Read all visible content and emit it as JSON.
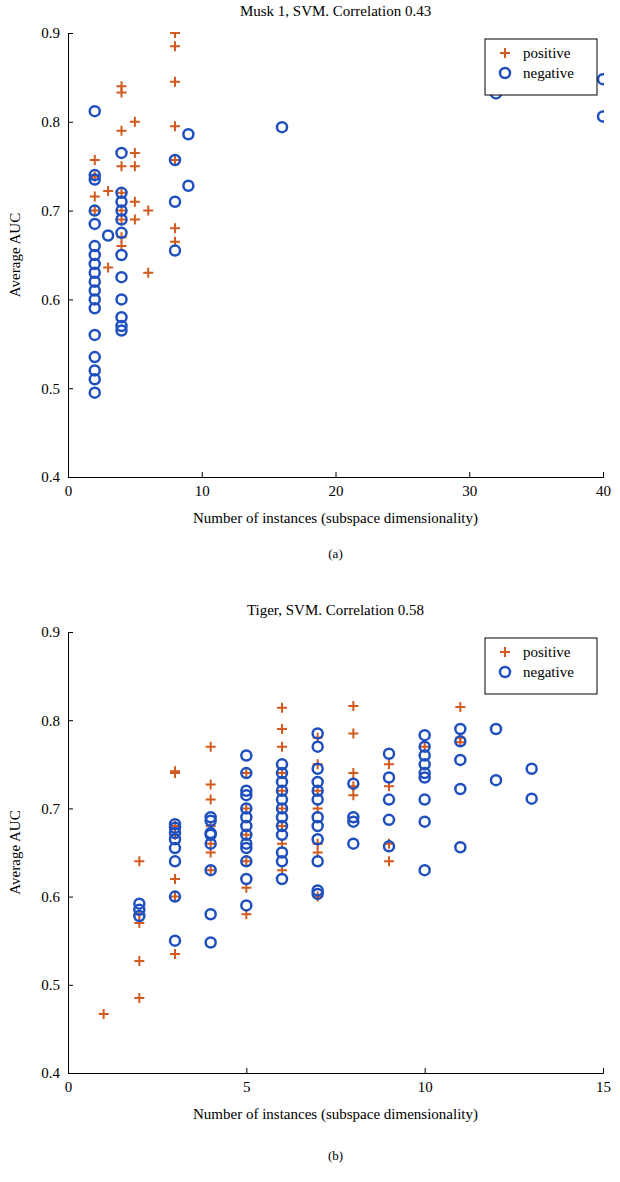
{
  "chart_data": [
    {
      "type": "scatter",
      "title": "Musk 1, SVM. Correlation 0.43",
      "x_label": "Number of instances (subspace dimensionality)",
      "y_label": "Average AUC",
      "caption": "(a)",
      "xlim": [
        0,
        40
      ],
      "xticks": [
        0,
        10,
        20,
        30,
        40
      ],
      "ylim": [
        0.4,
        0.9
      ],
      "yticks": [
        0.4,
        0.5,
        0.6,
        0.7,
        0.8,
        0.9
      ],
      "legend": "top-right",
      "series": [
        {
          "name": "positive",
          "color": "#d35a1e",
          "marker": "plus",
          "x": [
            2,
            2,
            2,
            2,
            3,
            3,
            4,
            4,
            4,
            4,
            4,
            4,
            4,
            4,
            4,
            5,
            5,
            5,
            5,
            5,
            6,
            6,
            8,
            8,
            8,
            8,
            8,
            8,
            8
          ],
          "values": [
            0.757,
            0.738,
            0.716,
            0.7,
            0.722,
            0.636,
            0.84,
            0.833,
            0.79,
            0.75,
            0.72,
            0.7,
            0.69,
            0.67,
            0.66,
            0.8,
            0.765,
            0.75,
            0.71,
            0.69,
            0.7,
            0.63,
            0.9,
            0.885,
            0.845,
            0.795,
            0.757,
            0.68,
            0.665
          ]
        },
        {
          "name": "negative",
          "color": "#1f4fbf",
          "marker": "circle",
          "x": [
            2,
            2,
            2,
            2,
            2,
            2,
            2,
            2,
            2,
            2,
            2,
            2,
            2,
            2,
            2,
            2,
            2,
            2,
            3,
            4,
            4,
            4,
            4,
            4,
            4,
            4,
            4,
            4,
            4,
            4,
            4,
            8,
            8,
            8,
            9,
            9,
            16,
            32,
            40,
            40
          ],
          "values": [
            0.812,
            0.74,
            0.735,
            0.7,
            0.685,
            0.66,
            0.65,
            0.64,
            0.63,
            0.62,
            0.61,
            0.6,
            0.59,
            0.56,
            0.535,
            0.52,
            0.51,
            0.495,
            0.672,
            0.765,
            0.72,
            0.71,
            0.7,
            0.69,
            0.675,
            0.65,
            0.625,
            0.6,
            0.58,
            0.57,
            0.565,
            0.757,
            0.71,
            0.655,
            0.786,
            0.728,
            0.794,
            0.832,
            0.848,
            0.806
          ]
        }
      ]
    },
    {
      "type": "scatter",
      "title": "Tiger, SVM. Correlation 0.58",
      "x_label": "Number of instances (subspace dimensionality)",
      "y_label": "Average AUC",
      "caption": "(b)",
      "xlim": [
        0,
        15
      ],
      "xticks": [
        0,
        5,
        10,
        15
      ],
      "ylim": [
        0.4,
        0.9
      ],
      "yticks": [
        0.4,
        0.5,
        0.6,
        0.7,
        0.8,
        0.9
      ],
      "legend": "top-right",
      "series": [
        {
          "name": "positive",
          "color": "#d35a1e",
          "marker": "plus",
          "x": [
            1,
            2,
            2,
            2,
            2,
            2,
            3,
            3,
            3,
            3,
            3,
            3,
            3,
            4,
            4,
            4,
            4,
            4,
            4,
            4,
            5,
            5,
            5,
            5,
            5,
            5,
            6,
            6,
            6,
            6,
            6,
            6,
            6,
            6,
            6,
            7,
            7,
            7,
            7,
            7,
            7,
            7,
            8,
            8,
            8,
            8,
            8,
            9,
            9,
            9,
            9,
            10,
            11,
            11,
            11
          ],
          "values": [
            0.467,
            0.64,
            0.57,
            0.527,
            0.485,
            0.58,
            0.742,
            0.74,
            0.68,
            0.67,
            0.62,
            0.6,
            0.535,
            0.77,
            0.727,
            0.71,
            0.68,
            0.66,
            0.65,
            0.63,
            0.74,
            0.7,
            0.67,
            0.64,
            0.61,
            0.58,
            0.814,
            0.79,
            0.77,
            0.74,
            0.72,
            0.7,
            0.68,
            0.66,
            0.63,
            0.78,
            0.75,
            0.72,
            0.7,
            0.66,
            0.65,
            0.6,
            0.816,
            0.785,
            0.74,
            0.725,
            0.715,
            0.75,
            0.725,
            0.66,
            0.64,
            0.77,
            0.815,
            0.78,
            0.775
          ]
        },
        {
          "name": "negative",
          "color": "#1f4fbf",
          "marker": "circle",
          "x": [
            2,
            2,
            2,
            3,
            3,
            3,
            3,
            3,
            3,
            3,
            3,
            4,
            4,
            4,
            4,
            4,
            4,
            4,
            4,
            5,
            5,
            5,
            5,
            5,
            5,
            5,
            5,
            5,
            5,
            5,
            5,
            5,
            6,
            6,
            6,
            6,
            6,
            6,
            6,
            6,
            6,
            6,
            6,
            6,
            7,
            7,
            7,
            7,
            7,
            7,
            7,
            7,
            7,
            7,
            7,
            7,
            8,
            8,
            8,
            8,
            9,
            9,
            9,
            9,
            9,
            10,
            10,
            10,
            10,
            10,
            10,
            10,
            10,
            10,
            11,
            11,
            11,
            11,
            11,
            12,
            12,
            13,
            13
          ],
          "values": [
            0.592,
            0.585,
            0.578,
            0.682,
            0.678,
            0.672,
            0.665,
            0.655,
            0.64,
            0.6,
            0.55,
            0.69,
            0.686,
            0.672,
            0.67,
            0.66,
            0.63,
            0.58,
            0.548,
            0.76,
            0.74,
            0.72,
            0.715,
            0.7,
            0.69,
            0.68,
            0.67,
            0.66,
            0.655,
            0.64,
            0.62,
            0.59,
            0.75,
            0.74,
            0.73,
            0.72,
            0.71,
            0.7,
            0.69,
            0.68,
            0.67,
            0.65,
            0.64,
            0.62,
            0.785,
            0.77,
            0.745,
            0.73,
            0.72,
            0.71,
            0.69,
            0.68,
            0.665,
            0.64,
            0.607,
            0.603,
            0.728,
            0.69,
            0.685,
            0.66,
            0.762,
            0.735,
            0.71,
            0.687,
            0.657,
            0.783,
            0.77,
            0.76,
            0.75,
            0.74,
            0.735,
            0.71,
            0.685,
            0.63,
            0.79,
            0.776,
            0.755,
            0.722,
            0.656,
            0.79,
            0.732,
            0.745,
            0.711
          ]
        }
      ]
    }
  ]
}
